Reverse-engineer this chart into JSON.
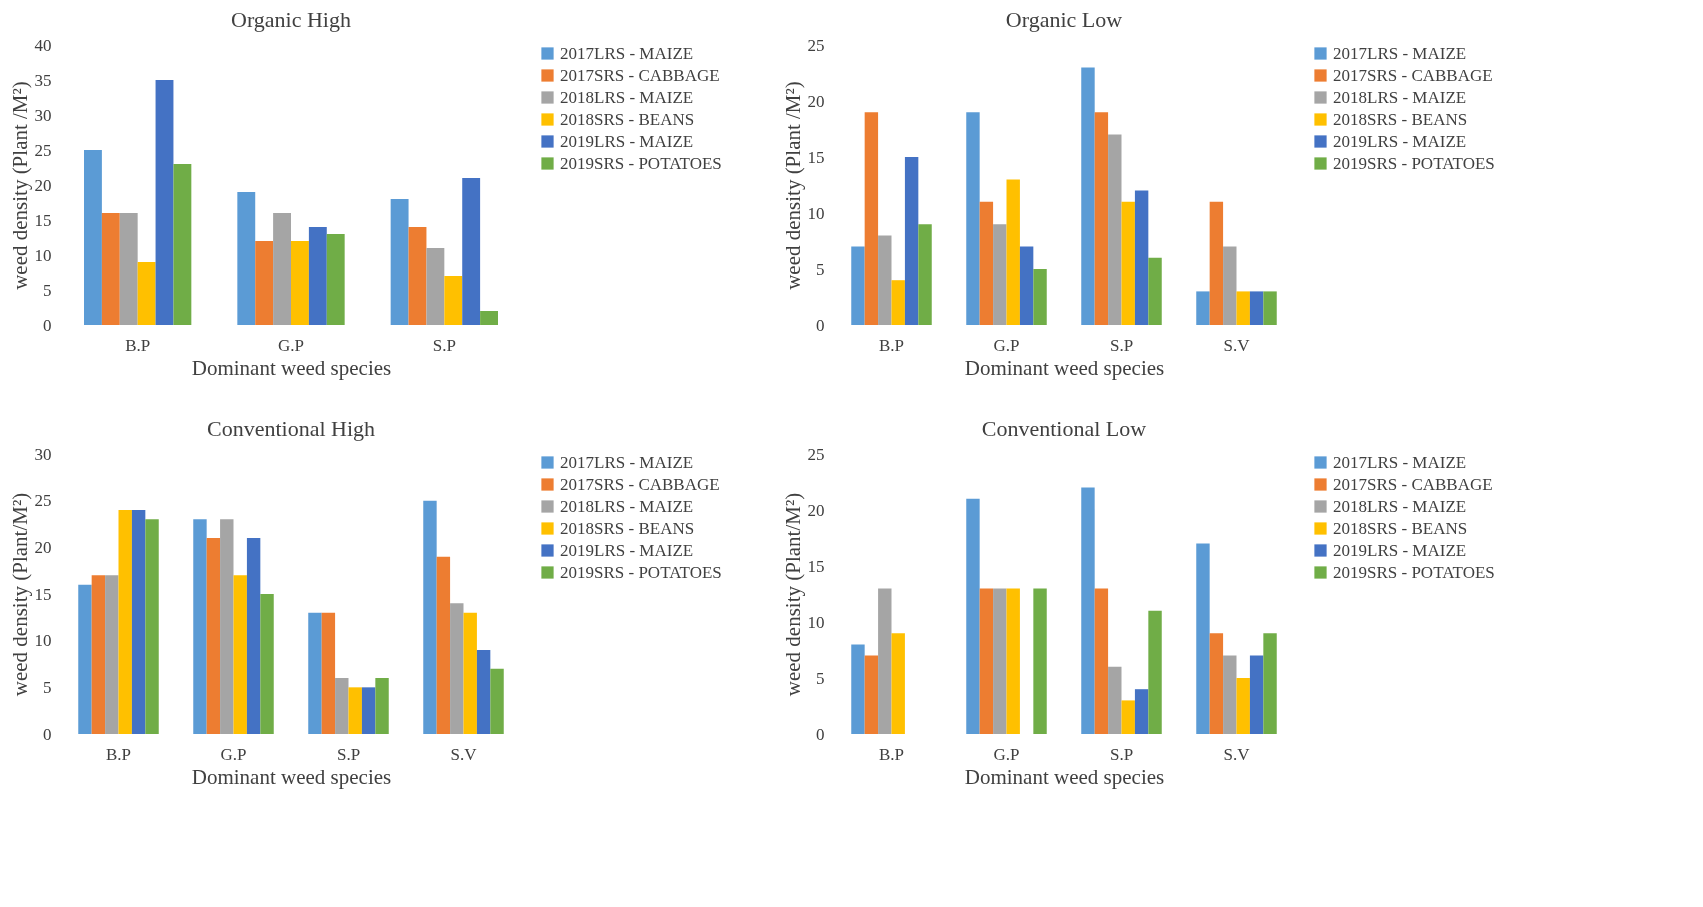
{
  "chart_data": [
    {
      "type": "bar",
      "title": "Organic High",
      "xlabel": "Dominant weed species",
      "ylabel": "weed density (Plant /M²)",
      "categories": [
        "B.P",
        "G.P",
        "S.P"
      ],
      "ylim": [
        0,
        40
      ],
      "yticks": [
        0,
        5,
        10,
        15,
        20,
        25,
        30,
        35,
        40
      ],
      "legend": "right",
      "series": [
        {
          "name": "2017LRS - MAIZE",
          "color": "#5b9bd5",
          "values": [
            25,
            19,
            18
          ]
        },
        {
          "name": "2017SRS - CABBAGE",
          "color": "#ed7d31",
          "values": [
            16,
            12,
            14
          ]
        },
        {
          "name": "2018LRS - MAIZE",
          "color": "#a5a5a5",
          "values": [
            16,
            16,
            11
          ]
        },
        {
          "name": "2018SRS - BEANS",
          "color": "#ffc000",
          "values": [
            9,
            12,
            7
          ]
        },
        {
          "name": "2019LRS - MAIZE",
          "color": "#4472c4",
          "values": [
            35,
            14,
            21
          ]
        },
        {
          "name": "2019SRS - POTATOES",
          "color": "#70ad47",
          "values": [
            23,
            13,
            2
          ]
        }
      ]
    },
    {
      "type": "bar",
      "title": "Organic Low",
      "xlabel": "Dominant weed species",
      "ylabel": "weed density (Plant /M²)",
      "categories": [
        "B.P",
        "G.P",
        "S.P",
        "S.V"
      ],
      "ylim": [
        0,
        25
      ],
      "yticks": [
        0,
        5,
        10,
        15,
        20,
        25
      ],
      "legend": "right",
      "series": [
        {
          "name": "2017LRS - MAIZE",
          "color": "#5b9bd5",
          "values": [
            7,
            19,
            23,
            3
          ]
        },
        {
          "name": "2017SRS - CABBAGE",
          "color": "#ed7d31",
          "values": [
            19,
            11,
            19,
            11
          ]
        },
        {
          "name": "2018LRS - MAIZE",
          "color": "#a5a5a5",
          "values": [
            8,
            9,
            17,
            7
          ]
        },
        {
          "name": "2018SRS - BEANS",
          "color": "#ffc000",
          "values": [
            4,
            13,
            11,
            3
          ]
        },
        {
          "name": "2019LRS - MAIZE",
          "color": "#4472c4",
          "values": [
            15,
            7,
            12,
            3
          ]
        },
        {
          "name": "2019SRS - POTATOES",
          "color": "#70ad47",
          "values": [
            9,
            5,
            6,
            3
          ]
        }
      ]
    },
    {
      "type": "bar",
      "title": "Conventional High",
      "xlabel": "Dominant weed species",
      "ylabel": "weed density (Plant/M²)",
      "categories": [
        "B.P",
        "G.P",
        "S.P",
        "S.V"
      ],
      "ylim": [
        0,
        30
      ],
      "yticks": [
        0,
        5,
        10,
        15,
        20,
        25,
        30
      ],
      "legend": "right",
      "series": [
        {
          "name": "2017LRS - MAIZE",
          "color": "#5b9bd5",
          "values": [
            16,
            23,
            13,
            25
          ]
        },
        {
          "name": "2017SRS - CABBAGE",
          "color": "#ed7d31",
          "values": [
            17,
            21,
            13,
            19
          ]
        },
        {
          "name": "2018LRS - MAIZE",
          "color": "#a5a5a5",
          "values": [
            17,
            23,
            6,
            14
          ]
        },
        {
          "name": "2018SRS - BEANS",
          "color": "#ffc000",
          "values": [
            24,
            17,
            5,
            13
          ]
        },
        {
          "name": "2019LRS - MAIZE",
          "color": "#4472c4",
          "values": [
            24,
            21,
            5,
            9
          ]
        },
        {
          "name": "2019SRS - POTATOES",
          "color": "#70ad47",
          "values": [
            23,
            15,
            6,
            7
          ]
        }
      ]
    },
    {
      "type": "bar",
      "title": "Conventional Low",
      "xlabel": "Dominant weed species",
      "ylabel": "weed density (Plant/M²)",
      "categories": [
        "B.P",
        "G.P",
        "S.P",
        "S.V"
      ],
      "ylim": [
        0,
        25
      ],
      "yticks": [
        0,
        5,
        10,
        15,
        20,
        25
      ],
      "legend": "right",
      "series": [
        {
          "name": "2017LRS - MAIZE",
          "color": "#5b9bd5",
          "values": [
            8,
            21,
            22,
            17
          ]
        },
        {
          "name": "2017SRS - CABBAGE",
          "color": "#ed7d31",
          "values": [
            7,
            13,
            13,
            9
          ]
        },
        {
          "name": "2018LRS - MAIZE",
          "color": "#a5a5a5",
          "values": [
            13,
            13,
            6,
            7
          ]
        },
        {
          "name": "2018SRS - BEANS",
          "color": "#ffc000",
          "values": [
            9,
            13,
            3,
            5
          ]
        },
        {
          "name": "2019LRS - MAIZE",
          "color": "#4472c4",
          "values": [
            null,
            null,
            4,
            7
          ]
        },
        {
          "name": "2019SRS - POTATOES",
          "color": "#70ad47",
          "values": [
            null,
            13,
            11,
            9
          ]
        }
      ]
    }
  ]
}
